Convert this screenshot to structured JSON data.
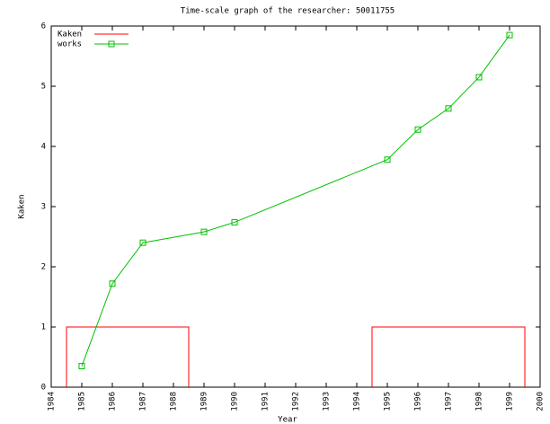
{
  "chart_data": {
    "type": "line",
    "title": "Time-scale graph of the researcher: 50011755",
    "xlabel": "Year",
    "ylabel": "Kaken",
    "xlim": [
      1984,
      2000
    ],
    "ylim": [
      0,
      6
    ],
    "xticks": [
      1984,
      1985,
      1986,
      1987,
      1988,
      1989,
      1990,
      1991,
      1992,
      1993,
      1994,
      1995,
      1996,
      1997,
      1998,
      1999,
      2000
    ],
    "yticks": [
      0,
      1,
      2,
      3,
      4,
      5,
      6
    ],
    "legend": "top-left",
    "series": [
      {
        "name": "Kaken",
        "color": "#ff0000",
        "style": "boxes",
        "x": [
          1985,
          1986,
          1987,
          1988,
          1995,
          1996,
          1997,
          1998,
          1999
        ],
        "values": [
          1,
          1,
          1,
          1,
          1,
          1,
          1,
          1,
          1
        ]
      },
      {
        "name": "works",
        "color": "#00c000",
        "style": "linespoints",
        "x": [
          1985,
          1986,
          1987,
          1989,
          1990,
          1995,
          1996,
          1997,
          1998,
          1999
        ],
        "values": [
          0.35,
          1.72,
          2.4,
          2.58,
          2.74,
          3.78,
          4.28,
          4.63,
          5.15,
          5.85
        ]
      }
    ]
  }
}
